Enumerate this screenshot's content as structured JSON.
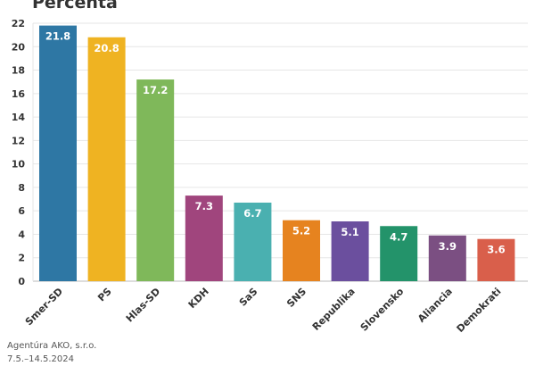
{
  "chart_data": {
    "type": "bar",
    "title": "Percenta",
    "categories": [
      "Smer-SD",
      "PS",
      "Hlas-SD",
      "KDH",
      "SaS",
      "SNS",
      "Republika",
      "Slovensko",
      "Aliancia",
      "Demokrati"
    ],
    "values": [
      21.8,
      20.8,
      17.2,
      7.3,
      6.7,
      5.2,
      5.1,
      4.7,
      3.9,
      3.6
    ],
    "colors": [
      "#2e77a4",
      "#efb322",
      "#7fb85a",
      "#a0457d",
      "#4ab0b0",
      "#e6831f",
      "#6b4f9e",
      "#23936a",
      "#7b4f82",
      "#d95f4b"
    ],
    "ylim": [
      0,
      22
    ],
    "yticks": [
      0,
      2,
      4,
      6,
      8,
      10,
      12,
      14,
      16,
      18,
      20,
      22
    ],
    "grid": true
  },
  "source": {
    "line1": "Agentúra AKO, s.r.o.",
    "line2": "7.5.–14.5.2024"
  }
}
